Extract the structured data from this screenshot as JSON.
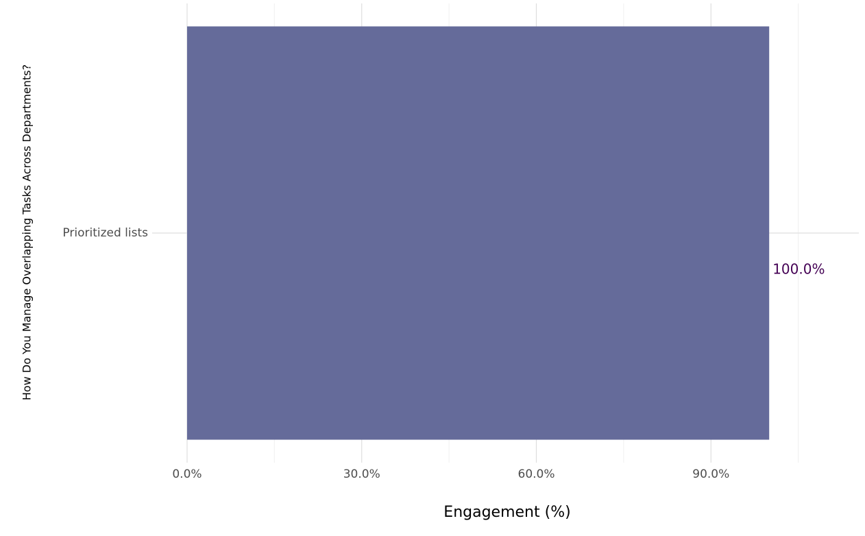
{
  "chart_data": {
    "type": "hbar",
    "x_label": "Engagement (%)",
    "y_label": "How Do You Manage Overlapping Tasks Across Departments?",
    "categories": [
      "Prioritized lists"
    ],
    "values": [
      100
    ],
    "value_labels": [
      "100.0%"
    ],
    "color": "#656b9a",
    "label_color": "#440154",
    "xlim": [
      -6,
      115.4
    ],
    "xticks": [
      {
        "value": 0,
        "label": "0.0%"
      },
      {
        "value": 30,
        "label": "30.0%"
      },
      {
        "value": 60,
        "label": "60.0%"
      },
      {
        "value": 90,
        "label": "90.0%"
      }
    ],
    "minor_xticks": [
      15,
      45,
      75,
      105
    ],
    "grid": true
  }
}
